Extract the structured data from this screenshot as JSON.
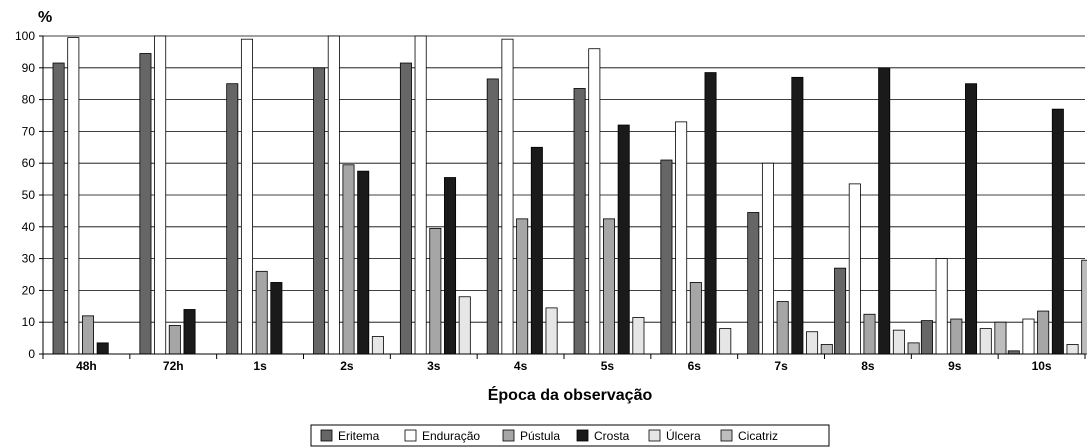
{
  "chart_data": {
    "type": "bar",
    "ylabel": "%",
    "xlabel": "Época da observação",
    "ylim": [
      0,
      100
    ],
    "yticks": [
      0,
      10,
      20,
      30,
      40,
      50,
      60,
      70,
      80,
      90,
      100
    ],
    "grid": true,
    "legend_position": "bottom",
    "categories": [
      "48h",
      "72h",
      "1s",
      "2s",
      "3s",
      "4s",
      "5s",
      "6s",
      "7s",
      "8s",
      "9s",
      "10s"
    ],
    "series": [
      {
        "name": "Eritema",
        "color": "#666666",
        "values": [
          91.5,
          94.5,
          85,
          90,
          91.5,
          86.5,
          83.5,
          61,
          44.5,
          27,
          10.5,
          1
        ]
      },
      {
        "name": "Enduração",
        "color": "#ffffff",
        "values": [
          99.5,
          100,
          99,
          100,
          100,
          99,
          96,
          73,
          60,
          53.5,
          30,
          11
        ]
      },
      {
        "name": "Pústula",
        "color": "#a6a6a6",
        "values": [
          12,
          9,
          26,
          59.5,
          39.5,
          42.5,
          42.5,
          22.5,
          16.5,
          12.5,
          11,
          13.5
        ]
      },
      {
        "name": "Crosta",
        "color": "#1a1a1a",
        "values": [
          3.5,
          14,
          22.5,
          57.5,
          55.5,
          65,
          72,
          88.5,
          87,
          90,
          85,
          77
        ]
      },
      {
        "name": "Úlcera",
        "color": "#e6e6e6",
        "values": [
          0,
          0,
          0,
          5.5,
          18,
          14.5,
          11.5,
          8,
          7,
          7.5,
          8,
          3
        ]
      },
      {
        "name": "Cicatriz",
        "color": "#bdbdbd",
        "values": [
          0,
          0,
          0,
          0,
          0,
          0,
          0,
          0,
          3,
          3.5,
          10,
          29.5
        ]
      }
    ]
  }
}
